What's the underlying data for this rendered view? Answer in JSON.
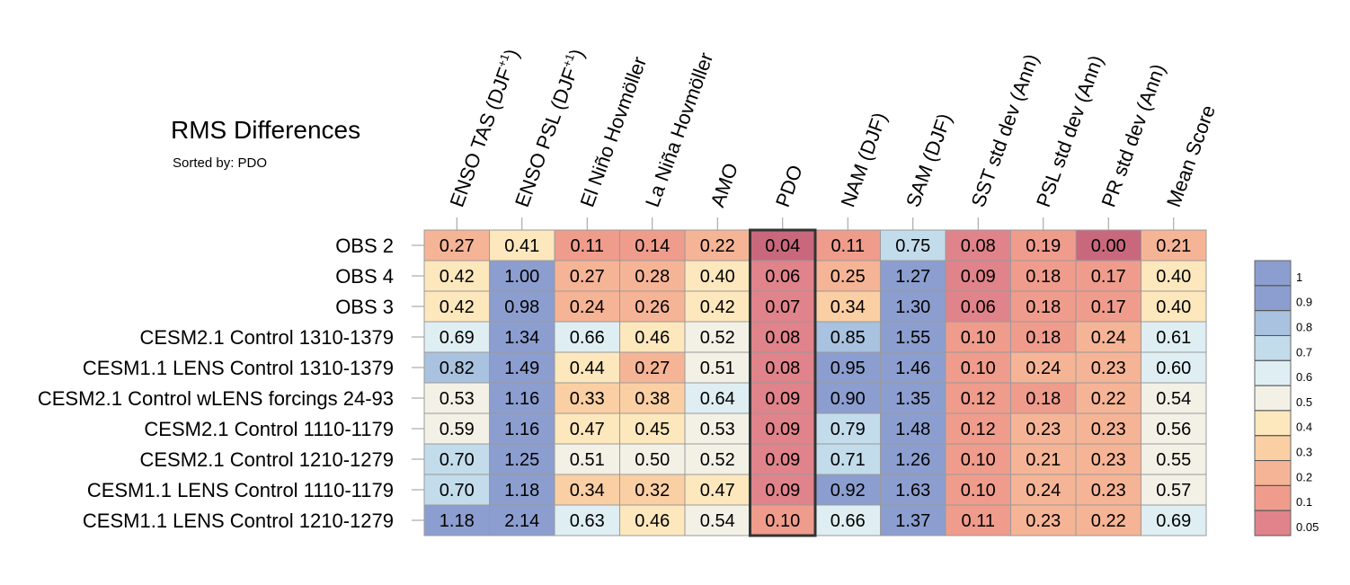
{
  "chart_data": {
    "type": "heatmap",
    "title": "RMS Differences",
    "subtitle": "Sorted by: PDO",
    "columns": [
      {
        "text": "ENSO TAS (DJF",
        "sup": "+1",
        "tail": ")"
      },
      {
        "text": "ENSO PSL (DJF",
        "sup": "+1",
        "tail": ")"
      },
      {
        "text": "El Niño Hovmöller"
      },
      {
        "text": "La Niña Hovmöller"
      },
      {
        "text": "AMO"
      },
      {
        "text": "PDO"
      },
      {
        "text": "NAM (DJF)"
      },
      {
        "text": "SAM (DJF)"
      },
      {
        "text": "SST std dev (Ann)"
      },
      {
        "text": "PSL std dev (Ann)"
      },
      {
        "text": "PR std dev (Ann)"
      },
      {
        "text": "Mean Score"
      }
    ],
    "highlight_column": "PDO",
    "rows": [
      "OBS 2",
      "OBS 4",
      "OBS 3",
      "CESM2.1 Control 1310-1379",
      "CESM1.1 LENS Control 1310-1379",
      "CESM2.1 Control wLENS forcings 24-93",
      "CESM2.1 Control 1110-1179",
      "CESM2.1 Control 1210-1279",
      "CESM1.1 LENS Control 1110-1179",
      "CESM1.1 LENS Control 1210-1279"
    ],
    "values": [
      [
        "0.27",
        "0.41",
        "0.11",
        "0.14",
        "0.22",
        "0.04",
        "0.11",
        "0.75",
        "0.08",
        "0.19",
        "0.00",
        "0.21"
      ],
      [
        "0.42",
        "1.00",
        "0.27",
        "0.28",
        "0.40",
        "0.06",
        "0.25",
        "1.27",
        "0.09",
        "0.18",
        "0.17",
        "0.40"
      ],
      [
        "0.42",
        "0.98",
        "0.24",
        "0.26",
        "0.42",
        "0.07",
        "0.34",
        "1.30",
        "0.06",
        "0.18",
        "0.17",
        "0.40"
      ],
      [
        "0.69",
        "1.34",
        "0.66",
        "0.46",
        "0.52",
        "0.08",
        "0.85",
        "1.55",
        "0.10",
        "0.18",
        "0.24",
        "0.61"
      ],
      [
        "0.82",
        "1.49",
        "0.44",
        "0.27",
        "0.51",
        "0.08",
        "0.95",
        "1.46",
        "0.10",
        "0.24",
        "0.23",
        "0.60"
      ],
      [
        "0.53",
        "1.16",
        "0.33",
        "0.38",
        "0.64",
        "0.09",
        "0.90",
        "1.35",
        "0.12",
        "0.18",
        "0.22",
        "0.54"
      ],
      [
        "0.59",
        "1.16",
        "0.47",
        "0.45",
        "0.53",
        "0.09",
        "0.79",
        "1.48",
        "0.12",
        "0.23",
        "0.23",
        "0.56"
      ],
      [
        "0.70",
        "1.25",
        "0.51",
        "0.50",
        "0.52",
        "0.09",
        "0.71",
        "1.26",
        "0.10",
        "0.21",
        "0.23",
        "0.55"
      ],
      [
        "0.70",
        "1.18",
        "0.34",
        "0.32",
        "0.47",
        "0.09",
        "0.92",
        "1.63",
        "0.10",
        "0.24",
        "0.23",
        "0.57"
      ],
      [
        "1.18",
        "2.14",
        "0.63",
        "0.46",
        "0.54",
        "0.10",
        "0.66",
        "1.37",
        "0.11",
        "0.23",
        "0.22",
        "0.69"
      ]
    ],
    "legend": {
      "position": "right",
      "labels": [
        "1",
        "0.9",
        "0.8",
        "0.7",
        "0.6",
        "0.5",
        "0.4",
        "0.3",
        "0.2",
        "0.1",
        "0.05"
      ],
      "thresholds": [
        0.05,
        0.1,
        0.2,
        0.3,
        0.4,
        0.5,
        0.6,
        0.7,
        0.8,
        0.9,
        1
      ],
      "colors": [
        "#c9687d",
        "#e0838a",
        "#ef9c8c",
        "#f6b496",
        "#fbcfa4",
        "#fde7bd",
        "#f3f1e6",
        "#dfeef2",
        "#c3dceb",
        "#a8c2df",
        "#8c9ecf",
        "#8c9ecf"
      ]
    }
  }
}
